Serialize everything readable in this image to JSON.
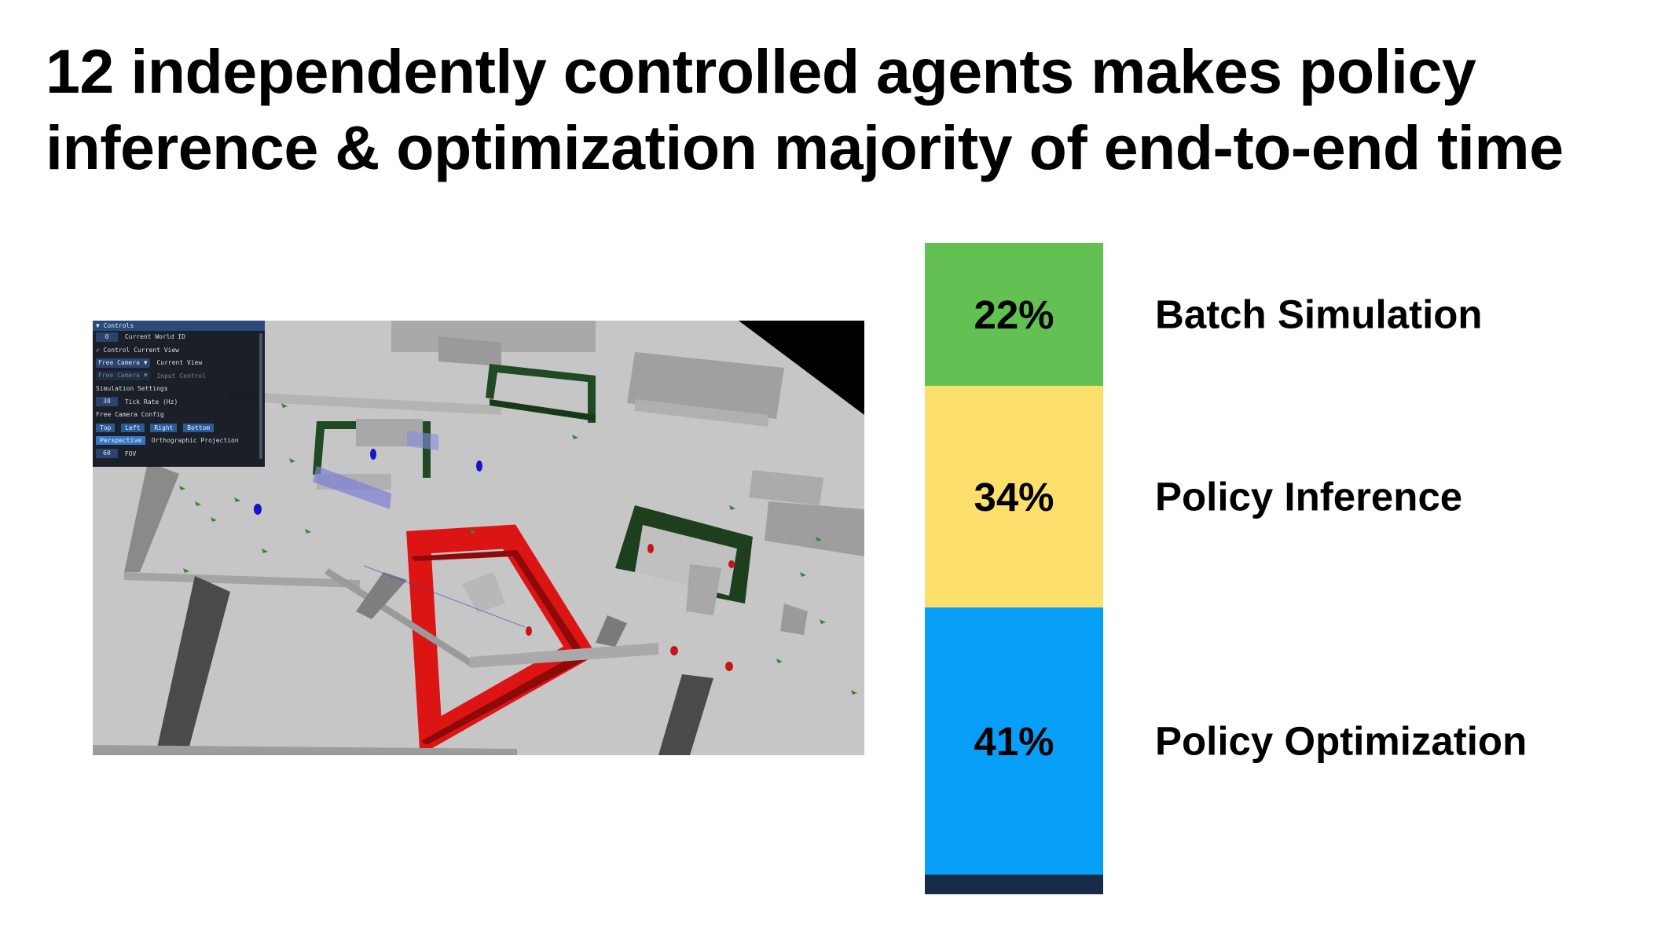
{
  "slide": {
    "title_line1": "12 independently controlled agents makes policy",
    "title_line2": "inference & optimization majority of end-to-end time"
  },
  "controls_panel": {
    "header": "Controls",
    "current_world_id_value": "0",
    "current_world_id_label": "Current World ID",
    "control_current_view_label": "Control Current View",
    "view_select_value": "Free Camera",
    "view_select_label": "Current View",
    "input_select_value": "Free Camera",
    "input_select_label": "Input Control",
    "simulation_settings_label": "Simulation Settings",
    "tick_rate_value": "30",
    "tick_rate_label": "Tick Rate (Hz)",
    "free_camera_config_label": "Free Camera Config",
    "camera_buttons": [
      "Top",
      "Left",
      "Right",
      "Bottom"
    ],
    "projection_options": [
      "Perspective",
      "Orthographic"
    ],
    "projection_label": "Projection",
    "fov_value": "60",
    "fov_label": "FOV"
  },
  "chart_data": {
    "type": "bar",
    "stacked": true,
    "title": "",
    "xlabel": "",
    "ylabel": "",
    "categories": [
      "Batch Simulation",
      "Policy Inference",
      "Policy Optimization"
    ],
    "values": [
      22,
      34,
      41
    ],
    "value_labels": [
      "22%",
      "34%",
      "41%"
    ],
    "unit": "%",
    "colors": [
      "#63c153",
      "#fddf6d",
      "#079ff7"
    ],
    "remainder": {
      "value": 3,
      "color": "#172a47"
    }
  }
}
